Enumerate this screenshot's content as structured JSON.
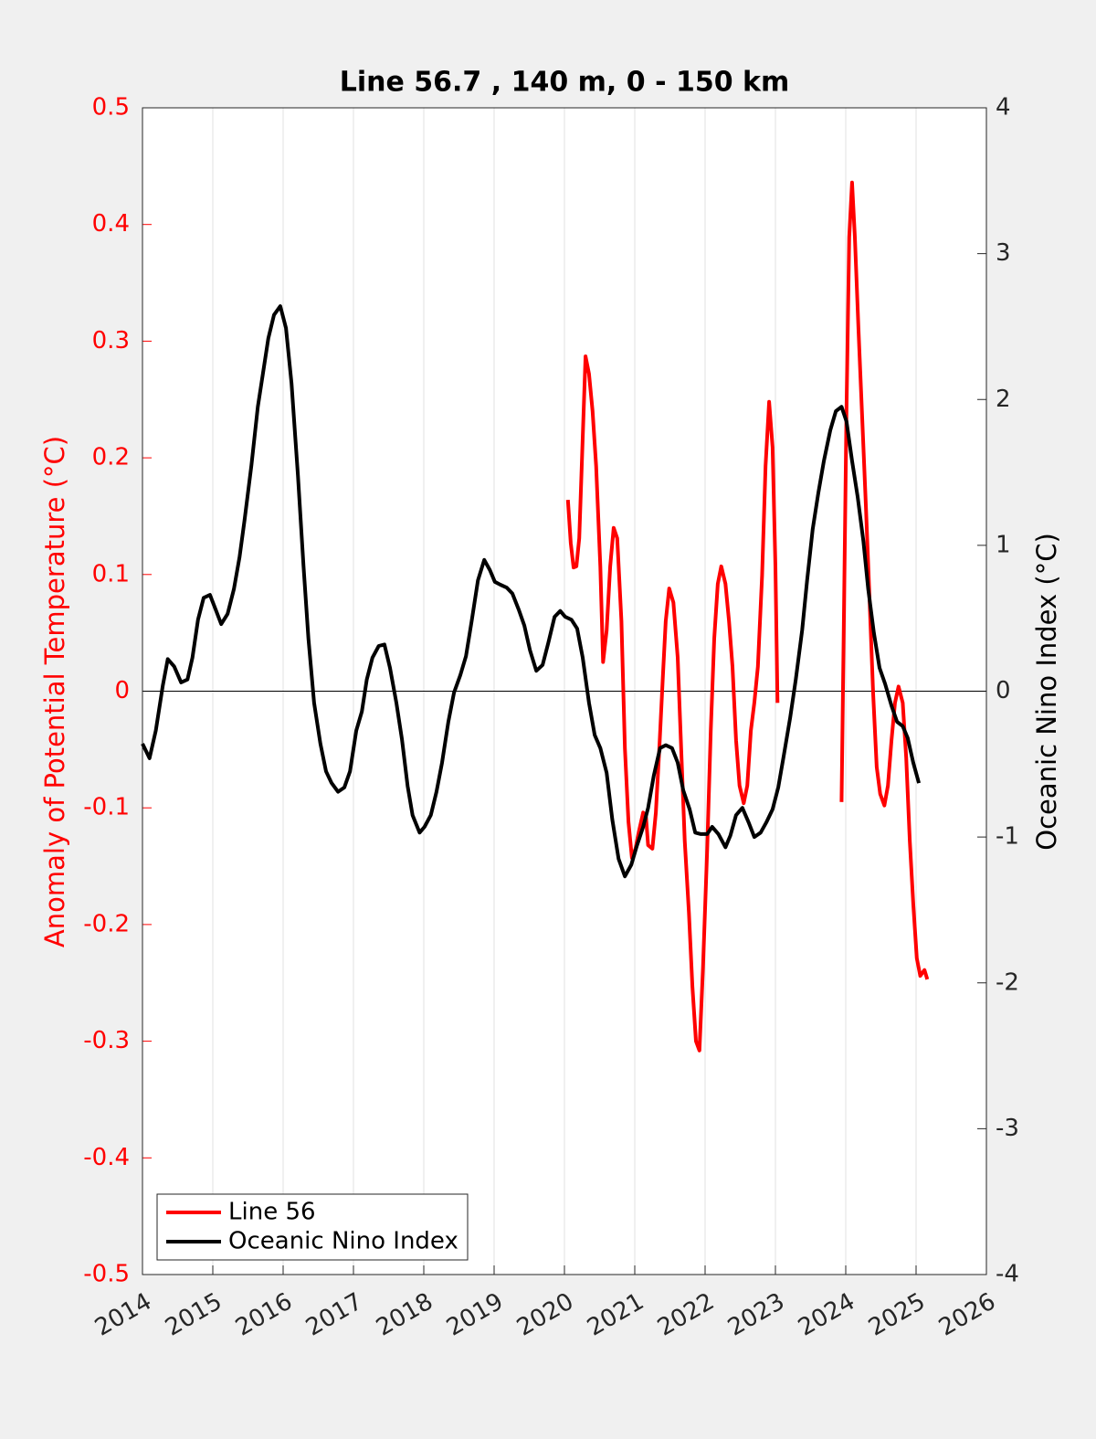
{
  "chart_data": {
    "type": "line",
    "title": "Line 56.7 , 140 m, 0 - 150 km",
    "y_label": "Anomaly of Potential Temperature (°C)",
    "y2_label": "Oceanic Nino Index (°C)",
    "xlim": [
      2014,
      2026
    ],
    "xticks": [
      2014,
      2015,
      2016,
      2017,
      2018,
      2019,
      2020,
      2021,
      2022,
      2023,
      2024,
      2025,
      2026
    ],
    "ylim": [
      -0.5,
      0.5
    ],
    "yticks": [
      -0.5,
      -0.4,
      -0.3,
      -0.2,
      -0.1,
      0,
      0.1,
      0.2,
      0.3,
      0.4,
      0.5
    ],
    "y2lim": [
      -4,
      4
    ],
    "y2ticks": [
      -4,
      -3,
      -2,
      -1,
      0,
      1,
      2,
      3,
      4
    ],
    "grid": "x",
    "legend": "lower left",
    "series": [
      {
        "name": "Line 56",
        "color": "#ff0000",
        "axis": "y",
        "x": [
          2020.05,
          2020.09,
          2020.13,
          2020.17,
          2020.21,
          2020.25,
          2020.3,
          2020.35,
          2020.4,
          2020.45,
          2020.51,
          2020.55,
          2020.6,
          2020.65,
          2020.7,
          2020.75,
          2020.81,
          2020.86,
          2020.91,
          2020.96,
          2021.01,
          2021.06,
          2021.12,
          2021.16,
          2021.19,
          2021.25,
          2021.3,
          2021.35,
          2021.4,
          2021.44,
          2021.49,
          2021.55,
          2021.61,
          2021.66,
          2021.71,
          2021.77,
          2021.82,
          2021.87,
          2021.92,
          2021.97,
          2022.03,
          2022.08,
          2022.13,
          2022.18,
          2022.23,
          2022.29,
          2022.34,
          2022.39,
          2022.44,
          2022.49,
          2022.55,
          2022.6,
          2022.65,
          2022.7,
          2022.75,
          2022.81,
          2022.86,
          2022.91,
          2022.96,
          2023.0,
          2023.03,
          null,
          2023.94,
          2023.97,
          2024.01,
          2024.05,
          2024.09,
          2024.13,
          2024.18,
          2024.23,
          2024.29,
          2024.34,
          2024.39,
          2024.44,
          2024.49,
          2024.55,
          2024.6,
          2024.65,
          2024.7,
          2024.75,
          2024.81,
          2024.86,
          2024.91,
          2024.96,
          2025.01,
          2025.06,
          2025.12,
          2025.16
        ],
        "values": [
          0.164,
          0.127,
          0.106,
          0.107,
          0.131,
          0.201,
          0.287,
          0.272,
          0.24,
          0.193,
          0.107,
          0.025,
          0.052,
          0.107,
          0.14,
          0.131,
          0.06,
          -0.049,
          -0.112,
          -0.143,
          -0.135,
          -0.12,
          -0.104,
          -0.108,
          -0.132,
          -0.135,
          -0.104,
          -0.049,
          0.013,
          0.06,
          0.088,
          0.076,
          0.029,
          -0.049,
          -0.128,
          -0.19,
          -0.253,
          -0.3,
          -0.308,
          -0.237,
          -0.135,
          -0.034,
          0.045,
          0.092,
          0.107,
          0.092,
          0.06,
          0.021,
          -0.042,
          -0.081,
          -0.096,
          -0.081,
          -0.034,
          -0.01,
          0.021,
          0.099,
          0.193,
          0.248,
          0.209,
          0.107,
          -0.01,
          null,
          -0.095,
          0.045,
          0.24,
          0.389,
          0.436,
          0.389,
          0.311,
          0.24,
          0.154,
          0.076,
          -0.002,
          -0.065,
          -0.088,
          -0.098,
          -0.081,
          -0.042,
          -0.01,
          0.004,
          -0.01,
          -0.057,
          -0.128,
          -0.182,
          -0.229,
          -0.244,
          -0.239,
          -0.247
        ]
      },
      {
        "name": "Oceanic Nino Index",
        "color": "#000000",
        "axis": "y2",
        "x": [
          2014.0,
          2014.1,
          2014.19,
          2014.29,
          2014.36,
          2014.45,
          2014.55,
          2014.64,
          2014.71,
          2014.79,
          2014.87,
          2014.96,
          2015.04,
          2015.12,
          2015.21,
          2015.3,
          2015.38,
          2015.45,
          2015.55,
          2015.64,
          2015.71,
          2015.79,
          2015.87,
          2015.96,
          2016.04,
          2016.12,
          2016.21,
          2016.29,
          2016.36,
          2016.44,
          2016.53,
          2016.61,
          2016.69,
          2016.78,
          2016.87,
          2016.95,
          2017.04,
          2017.12,
          2017.19,
          2017.27,
          2017.36,
          2017.44,
          2017.52,
          2017.61,
          2017.69,
          2017.77,
          2017.84,
          2017.94,
          2018.01,
          2018.1,
          2018.18,
          2018.26,
          2018.35,
          2018.43,
          2018.52,
          2018.6,
          2018.68,
          2018.77,
          2018.86,
          2018.94,
          2019.01,
          2019.09,
          2019.18,
          2019.26,
          2019.35,
          2019.43,
          2019.51,
          2019.6,
          2019.69,
          2019.77,
          2019.86,
          2019.94,
          2020.01,
          2020.1,
          2020.18,
          2020.26,
          2020.35,
          2020.43,
          2020.51,
          2020.6,
          2020.68,
          2020.77,
          2020.86,
          2020.95,
          2021.03,
          2021.12,
          2021.19,
          2021.27,
          2021.36,
          2021.44,
          2021.53,
          2021.61,
          2021.69,
          2021.78,
          2021.86,
          2021.94,
          2022.03,
          2022.1,
          2022.19,
          2022.29,
          2022.36,
          2022.44,
          2022.53,
          2022.62,
          2022.7,
          2022.79,
          2022.87,
          2022.96,
          2023.04,
          2023.12,
          2023.21,
          2023.29,
          2023.38,
          2023.45,
          2023.53,
          2023.61,
          2023.69,
          2023.78,
          2023.86,
          2023.94,
          2024.01,
          2024.09,
          2024.17,
          2024.25,
          2024.32,
          2024.4,
          2024.48,
          2024.56,
          2024.65,
          2024.73,
          2024.81,
          2024.88,
          2024.96,
          2025.04
        ],
        "values": [
          -0.36,
          -0.46,
          -0.27,
          0.04,
          0.22,
          0.17,
          0.06,
          0.08,
          0.23,
          0.49,
          0.64,
          0.66,
          0.56,
          0.46,
          0.53,
          0.7,
          0.92,
          1.17,
          1.55,
          1.95,
          2.17,
          2.42,
          2.58,
          2.64,
          2.49,
          2.11,
          1.48,
          0.86,
          0.36,
          -0.08,
          -0.36,
          -0.55,
          -0.63,
          -0.69,
          -0.66,
          -0.55,
          -0.27,
          -0.14,
          0.08,
          0.23,
          0.31,
          0.32,
          0.16,
          -0.08,
          -0.33,
          -0.65,
          -0.85,
          -0.97,
          -0.93,
          -0.85,
          -0.69,
          -0.49,
          -0.21,
          -0.01,
          0.11,
          0.24,
          0.48,
          0.76,
          0.9,
          0.83,
          0.75,
          0.73,
          0.71,
          0.67,
          0.56,
          0.45,
          0.28,
          0.14,
          0.18,
          0.33,
          0.51,
          0.55,
          0.51,
          0.49,
          0.43,
          0.23,
          -0.08,
          -0.3,
          -0.39,
          -0.56,
          -0.88,
          -1.15,
          -1.27,
          -1.19,
          -1.06,
          -0.93,
          -0.8,
          -0.58,
          -0.39,
          -0.37,
          -0.39,
          -0.49,
          -0.68,
          -0.81,
          -0.97,
          -0.98,
          -0.98,
          -0.93,
          -0.98,
          -1.07,
          -0.99,
          -0.85,
          -0.8,
          -0.9,
          -1.0,
          -0.97,
          -0.9,
          -0.81,
          -0.66,
          -0.44,
          -0.18,
          0.08,
          0.42,
          0.76,
          1.11,
          1.36,
          1.58,
          1.79,
          1.92,
          1.95,
          1.85,
          1.58,
          1.33,
          1.03,
          0.7,
          0.4,
          0.16,
          0.05,
          -0.1,
          -0.21,
          -0.24,
          -0.32,
          -0.49,
          -0.63
        ]
      }
    ]
  }
}
